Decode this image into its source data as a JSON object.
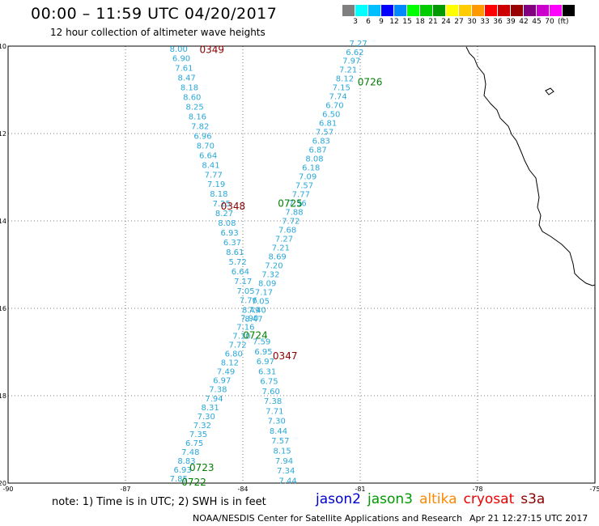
{
  "title": "00:00 – 11:59 UTC 04/20/2017",
  "subtitle": "12 hour collection of altimeter wave heights",
  "colorbar": {
    "colors": [
      "#7f7f7f",
      "#00ffff",
      "#00bfff",
      "#0000ff",
      "#0088ff",
      "#00ff00",
      "#00cc00",
      "#009900",
      "#ffff00",
      "#ffcc00",
      "#ff9900",
      "#ff0000",
      "#cc0000",
      "#990000",
      "#800080",
      "#cc00cc",
      "#ff00ff",
      "#000000"
    ],
    "labels": [
      "3",
      "6",
      "9",
      "12",
      "15",
      "18",
      "21",
      "24",
      "27",
      "30",
      "33",
      "36",
      "39",
      "42",
      "45",
      "70"
    ],
    "unit": "(ft)"
  },
  "axes": {
    "lon_ticks": [
      "-90",
      "-87",
      "-84",
      "-81",
      "-78",
      "-75"
    ],
    "lat_ticks": [
      "-10",
      "-12",
      "-14",
      "-16",
      "-18",
      "-20"
    ],
    "lon_range": [
      -90,
      -75
    ],
    "lat_range": [
      -20,
      -10
    ],
    "grid": true
  },
  "point_color": "#2aa8d8",
  "pass_labels": [
    {
      "text": "0349",
      "lon": -84.79,
      "lat": -10.08,
      "color": "#8b0000"
    },
    {
      "text": "0726",
      "lon": -80.75,
      "lat": -10.82,
      "color": "#007f00"
    },
    {
      "text": "0348",
      "lon": -84.25,
      "lat": -13.67,
      "color": "#8b0000"
    },
    {
      "text": "0725",
      "lon": -82.79,
      "lat": -13.6,
      "color": "#007f00"
    },
    {
      "text": "0724",
      "lon": -83.68,
      "lat": -16.62,
      "color": "#007f00"
    },
    {
      "text": "0347",
      "lon": -82.92,
      "lat": -17.09,
      "color": "#8b0000"
    },
    {
      "text": "0723",
      "lon": -85.05,
      "lat": -19.65,
      "color": "#007f00"
    },
    {
      "text": "0722",
      "lon": -85.25,
      "lat": -19.98,
      "color": "#007f00"
    }
  ],
  "track_a": {
    "start": [
      -85.64,
      -10.07
    ],
    "end": [
      -83.79,
      -16.05
    ],
    "values": [
      "8.00",
      "6.90",
      "7.61",
      "8.47",
      "8.18",
      "8.60",
      "8.25",
      "8.16",
      "7.82",
      "6.96",
      "8.70",
      "6.64",
      "8.41",
      "7.77",
      "7.19",
      "8.18",
      "7.25",
      "8.27",
      "8.08",
      "6.93",
      "6.37",
      "8.61",
      "5.72",
      "6.64",
      "7.17",
      "7.05",
      "7.76",
      "8.49"
    ]
  },
  "track_b": {
    "start": [
      -83.83,
      -16.23
    ],
    "end": [
      -85.64,
      -19.91
    ],
    "values": [
      "7.90",
      "7.16",
      "7.10",
      "7.72",
      "6.80",
      "8.12",
      "7.49",
      "6.97",
      "7.38",
      "7.94",
      "8.31",
      "7.30",
      "7.32",
      "7.35",
      "6.75",
      "7.48",
      "8.83",
      "6.93",
      "7.85"
    ]
  },
  "track_c": {
    "start": [
      -81.05,
      -9.94
    ],
    "end": [
      -83.72,
      -16.25
    ],
    "values": [
      "7.27",
      "6.62",
      "7.97",
      "7.21",
      "8.12",
      "7.15",
      "7.74",
      "6.70",
      "6.50",
      "6.81",
      "7.57",
      "6.83",
      "6.87",
      "8.08",
      "6.18",
      "7.09",
      "7.57",
      "7.77",
      "7.36",
      "7.88",
      "7.72",
      "7.68",
      "7.27",
      "7.21",
      "8.69",
      "7.20",
      "7.32",
      "8.09",
      "7.17",
      "7.05",
      "7.40",
      "8.47"
    ]
  },
  "track_d": {
    "start": [
      -83.52,
      -16.77
    ],
    "end": [
      -82.85,
      -19.95
    ],
    "values": [
      "7.59",
      "6.95",
      "6.97",
      "6.31",
      "6.75",
      "7.60",
      "7.38",
      "7.71",
      "7.30",
      "8.44",
      "7.57",
      "8.15",
      "7.94",
      "7.34",
      "7.44"
    ]
  },
  "note": "note: 1) Time is in UTC; 2) SWH is in feet",
  "legend": [
    {
      "name": "jason2",
      "color": "#0000cc"
    },
    {
      "name": "jason3",
      "color": "#009900"
    },
    {
      "name": "altika",
      "color": "#ff8800"
    },
    {
      "name": "cryosat",
      "color": "#ee0000"
    },
    {
      "name": "s3a",
      "color": "#8b0000"
    }
  ],
  "credit": "NOAA/NESDIS Center for Satellite Applications and Research",
  "timestamp": "Apr 21 12:27:15 UTC 2017"
}
